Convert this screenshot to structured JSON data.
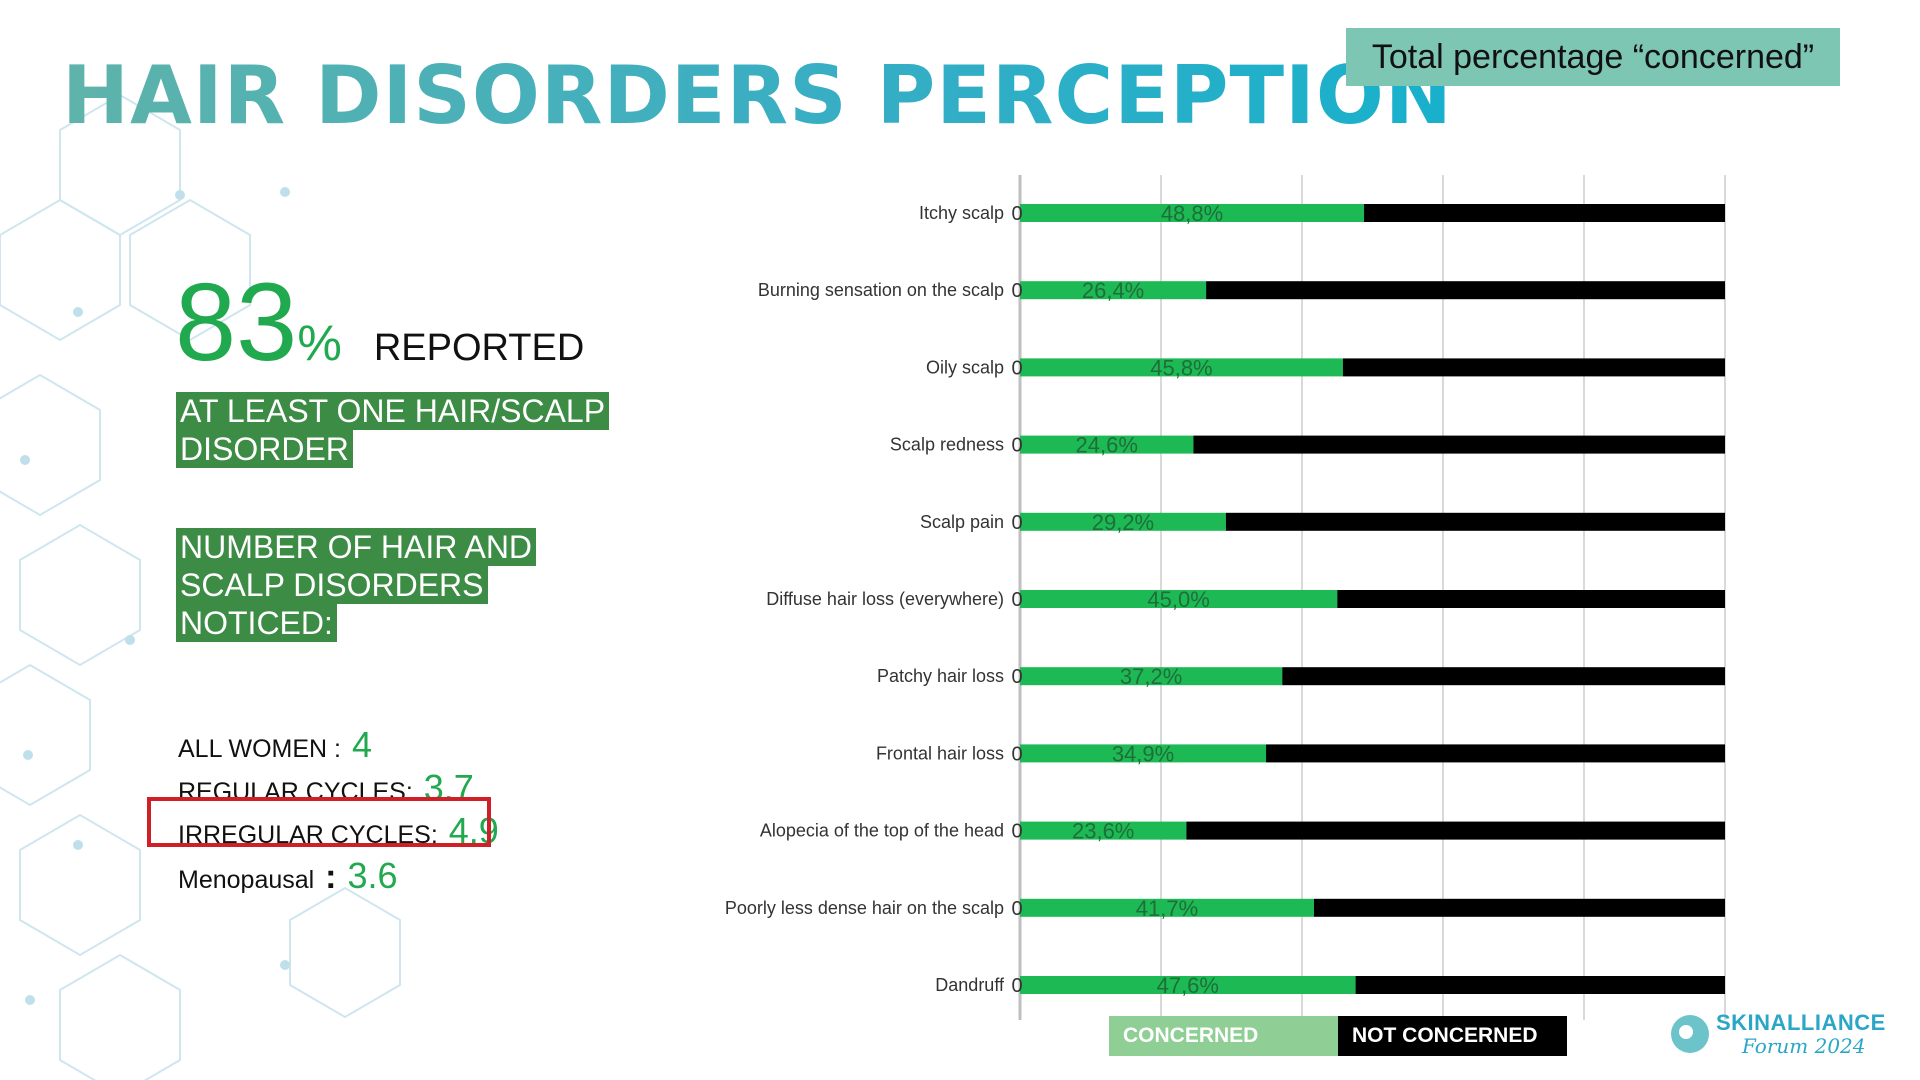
{
  "title": "HAIR DISORDERS PERCEPTION",
  "legend_box": "Total percentage “concerned”",
  "summary": {
    "big_number": "83",
    "big_pct": "%",
    "reported": "REPORTED",
    "block1": [
      "AT LEAST ONE HAIR/SCALP",
      "DISORDER"
    ],
    "block2": [
      "NUMBER OF HAIR AND",
      "SCALP DISORDERS",
      "NOTICED:"
    ],
    "stats": [
      {
        "label": "ALL WOMEN :",
        "value": "4"
      },
      {
        "label": "REGULAR CYCLES:",
        "value": "3.7"
      },
      {
        "label": "IRREGULAR CYCLES:",
        "value": "4.9"
      },
      {
        "label": "Menopausal",
        "colon": ":",
        "value": "3.6"
      }
    ]
  },
  "chart_data": {
    "type": "bar",
    "orientation": "horizontal",
    "stacked": true,
    "categories": [
      "Itchy scalp",
      "Burning sensation on the scalp",
      "Oily scalp",
      "Scalp redness",
      "Scalp pain",
      "Diffuse hair loss (everywhere)",
      "Patchy hair loss",
      "Frontal hair loss",
      "Alopecia of the top of the head",
      "Poorly less dense hair on the scalp",
      "Dandruff"
    ],
    "series": [
      {
        "name": "CONCERNED",
        "color": "#1db954",
        "values": [
          48.8,
          26.4,
          45.8,
          24.6,
          29.2,
          45.0,
          37.2,
          34.9,
          23.6,
          41.7,
          47.6
        ]
      },
      {
        "name": "NOT CONCERNED",
        "color": "#000000",
        "values": [
          51.2,
          73.6,
          54.2,
          75.4,
          70.8,
          55.0,
          62.8,
          65.1,
          76.4,
          58.3,
          52.4
        ]
      }
    ],
    "data_labels": [
      "48,8%",
      "26,4%",
      "45,8%",
      "24,6%",
      "29,2%",
      "45,0%",
      "37,2%",
      "34,9%",
      "23,6%",
      "41,7%",
      "47,6%"
    ],
    "zero_labels": [
      "0",
      "0",
      "0",
      "0",
      "0",
      "0",
      "0",
      "0",
      "0",
      "0",
      "0"
    ],
    "xlim": [
      0,
      100
    ],
    "grid": true
  },
  "legend": {
    "concerned": "CONCERNED",
    "not_concerned": "NOT CONCERNED",
    "concerned_color": "#8fcf95",
    "not_concerned_color": "#000000"
  },
  "logo": {
    "main": "SKINALLIANCE",
    "sub": "Forum 2024",
    "icon": "skinalliance-logo-icon"
  }
}
